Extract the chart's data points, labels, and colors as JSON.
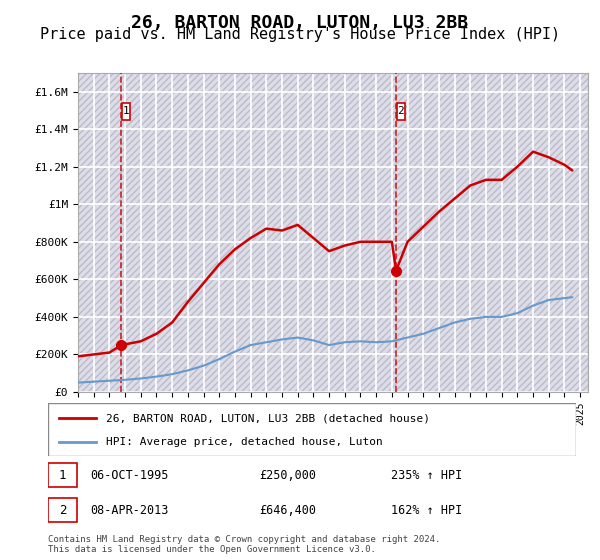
{
  "title": "26, BARTON ROAD, LUTON, LU3 2BB",
  "subtitle": "Price paid vs. HM Land Registry's House Price Index (HPI)",
  "title_fontsize": 13,
  "subtitle_fontsize": 11,
  "ylabel_ticks": [
    "£0",
    "£200K",
    "£400K",
    "£600K",
    "£800K",
    "£1M",
    "£1.2M",
    "£1.4M",
    "£1.6M"
  ],
  "ytick_values": [
    0,
    200000,
    400000,
    600000,
    800000,
    1000000,
    1200000,
    1400000,
    1600000
  ],
  "ylim": [
    0,
    1700000
  ],
  "xlim_start": 1993.0,
  "xlim_end": 2025.5,
  "background_color": "#ffffff",
  "plot_bg_color": "#e8e8f0",
  "grid_color": "#ffffff",
  "hatch_color": "#ccccdd",
  "red_line_color": "#cc0000",
  "blue_line_color": "#6699cc",
  "transaction1_x": 1995.76,
  "transaction1_y": 250000,
  "transaction2_x": 2013.27,
  "transaction2_y": 646400,
  "transaction1_label": "06-OCT-1995",
  "transaction1_price": "£250,000",
  "transaction1_hpi": "235% ↑ HPI",
  "transaction2_label": "08-APR-2013",
  "transaction2_price": "£646,400",
  "transaction2_hpi": "162% ↑ HPI",
  "legend_label1": "26, BARTON ROAD, LUTON, LU3 2BB (detached house)",
  "legend_label2": "HPI: Average price, detached house, Luton",
  "footer": "Contains HM Land Registry data © Crown copyright and database right 2024.\nThis data is licensed under the Open Government Licence v3.0.",
  "red_line_x": [
    1993.0,
    1994.0,
    1995.0,
    1995.76,
    1997.0,
    1998.0,
    1999.0,
    2000.0,
    2001.0,
    2002.0,
    2003.0,
    2004.0,
    2005.0,
    2006.0,
    2007.0,
    2008.0,
    2009.0,
    2010.0,
    2011.0,
    2012.0,
    2013.0,
    2013.27,
    2014.0,
    2015.0,
    2016.0,
    2017.0,
    2018.0,
    2019.0,
    2020.0,
    2021.0,
    2022.0,
    2023.0,
    2024.0,
    2024.5
  ],
  "red_line_y": [
    190000,
    200000,
    210000,
    250000,
    270000,
    310000,
    370000,
    480000,
    580000,
    680000,
    760000,
    820000,
    870000,
    860000,
    890000,
    820000,
    750000,
    780000,
    800000,
    800000,
    800000,
    646400,
    800000,
    880000,
    960000,
    1030000,
    1100000,
    1130000,
    1130000,
    1200000,
    1280000,
    1250000,
    1210000,
    1180000
  ],
  "blue_line_x": [
    1993.0,
    1994.0,
    1995.0,
    1996.0,
    1997.0,
    1998.0,
    1999.0,
    2000.0,
    2001.0,
    2002.0,
    2003.0,
    2004.0,
    2005.0,
    2006.0,
    2007.0,
    2008.0,
    2009.0,
    2010.0,
    2011.0,
    2012.0,
    2013.0,
    2014.0,
    2015.0,
    2016.0,
    2017.0,
    2018.0,
    2019.0,
    2020.0,
    2021.0,
    2022.0,
    2023.0,
    2024.0,
    2024.5
  ],
  "blue_line_y": [
    50000,
    55000,
    60000,
    65000,
    72000,
    82000,
    95000,
    115000,
    140000,
    175000,
    215000,
    250000,
    265000,
    280000,
    290000,
    275000,
    250000,
    265000,
    270000,
    265000,
    270000,
    290000,
    310000,
    340000,
    370000,
    390000,
    400000,
    400000,
    420000,
    460000,
    490000,
    500000,
    505000
  ]
}
